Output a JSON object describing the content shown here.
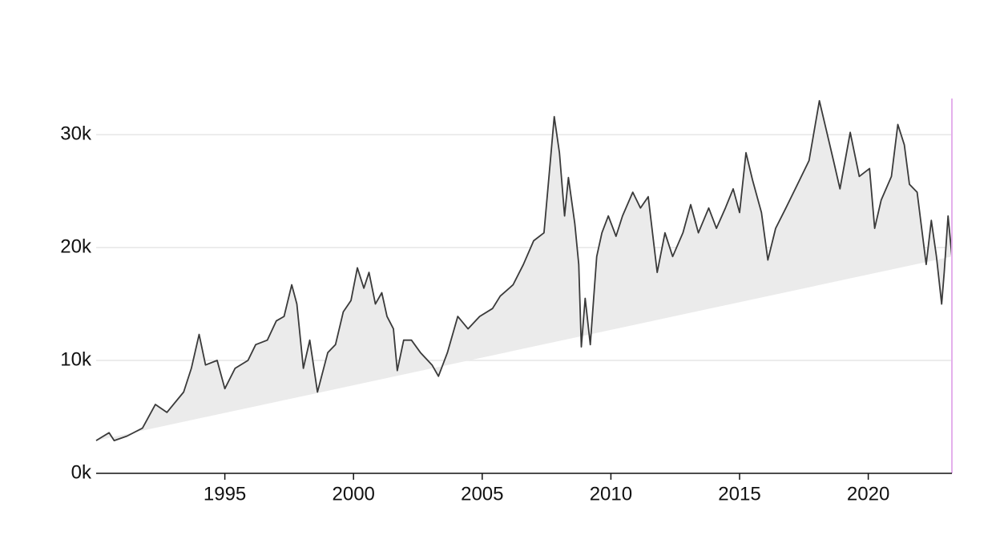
{
  "chart_data": {
    "type": "line",
    "x": [
      1990.0,
      1990.5,
      1990.7,
      1991.2,
      1991.8,
      1992.3,
      1992.75,
      1993.4,
      1993.7,
      1994.0,
      1994.25,
      1994.7,
      1995.0,
      1995.4,
      1995.9,
      1996.2,
      1996.65,
      1997.0,
      1997.3,
      1997.6,
      1997.8,
      1998.05,
      1998.3,
      1998.6,
      1999.0,
      1999.3,
      1999.6,
      1999.9,
      2000.15,
      2000.4,
      2000.6,
      2000.85,
      2001.1,
      2001.3,
      2001.55,
      2001.7,
      2001.95,
      2002.25,
      2002.6,
      2003.05,
      2003.3,
      2003.65,
      2004.05,
      2004.45,
      2004.9,
      2005.4,
      2005.7,
      2006.2,
      2006.6,
      2007.0,
      2007.4,
      2007.65,
      2007.8,
      2008.0,
      2008.2,
      2008.35,
      2008.6,
      2008.75,
      2008.85,
      2009.0,
      2009.2,
      2009.45,
      2009.65,
      2009.9,
      2010.2,
      2010.45,
      2010.85,
      2011.15,
      2011.45,
      2011.8,
      2012.1,
      2012.4,
      2012.8,
      2013.1,
      2013.4,
      2013.8,
      2014.1,
      2014.45,
      2014.75,
      2015.0,
      2015.25,
      2015.5,
      2015.85,
      2016.1,
      2016.4,
      2016.8,
      2017.25,
      2017.7,
      2018.1,
      2018.35,
      2018.65,
      2018.9,
      2019.3,
      2019.65,
      2020.05,
      2020.25,
      2020.5,
      2020.9,
      2021.15,
      2021.4,
      2021.6,
      2021.9,
      2022.25,
      2022.45,
      2022.65,
      2022.85,
      2022.95,
      2023.1,
      2023.25
    ],
    "series": [
      {
        "color": "#3a3a3a",
        "values": [
          2900,
          3600,
          2900,
          3300,
          4000,
          6100,
          5400,
          7200,
          9300,
          12300,
          9600,
          10000,
          7500,
          9300,
          10000,
          11400,
          11800,
          13500,
          13900,
          16700,
          15000,
          9300,
          11800,
          7200,
          10700,
          11400,
          14300,
          15300,
          18200,
          16400,
          17800,
          15000,
          16000,
          13900,
          12800,
          9100,
          11800,
          11800,
          10700,
          9600,
          8600,
          10700,
          13900,
          12800,
          13900,
          14600,
          15700,
          16700,
          18500,
          20600,
          21300,
          27700,
          31600,
          28400,
          22800,
          26200,
          22100,
          18500,
          11200,
          15500,
          11400,
          19200,
          21300,
          22800,
          21000,
          22800,
          24900,
          23500,
          24500,
          17800,
          21300,
          19200,
          21300,
          23800,
          21300,
          23500,
          21700,
          23500,
          25200,
          23100,
          28400,
          26000,
          23100,
          18900,
          21700,
          23500,
          25600,
          27700,
          33000,
          30600,
          27700,
          25200,
          30200,
          26300,
          27000,
          21700,
          24200,
          26300,
          30900,
          29100,
          25600,
          24900,
          18500,
          22400,
          19200,
          15000,
          17800,
          22800,
          19200
        ]
      }
    ],
    "area_color": "#ebebeb",
    "xlim": [
      1990,
      2023.25
    ],
    "xticks": [
      1995,
      2000,
      2005,
      2010,
      2015,
      2020
    ],
    "ylim": [
      0,
      33200
    ],
    "yticks": [
      {
        "value": 0,
        "label": "0k"
      },
      {
        "value": 10000,
        "label": "10k"
      },
      {
        "value": 20000,
        "label": "20k"
      },
      {
        "value": 30000,
        "label": "30k"
      }
    ],
    "grid": true
  }
}
